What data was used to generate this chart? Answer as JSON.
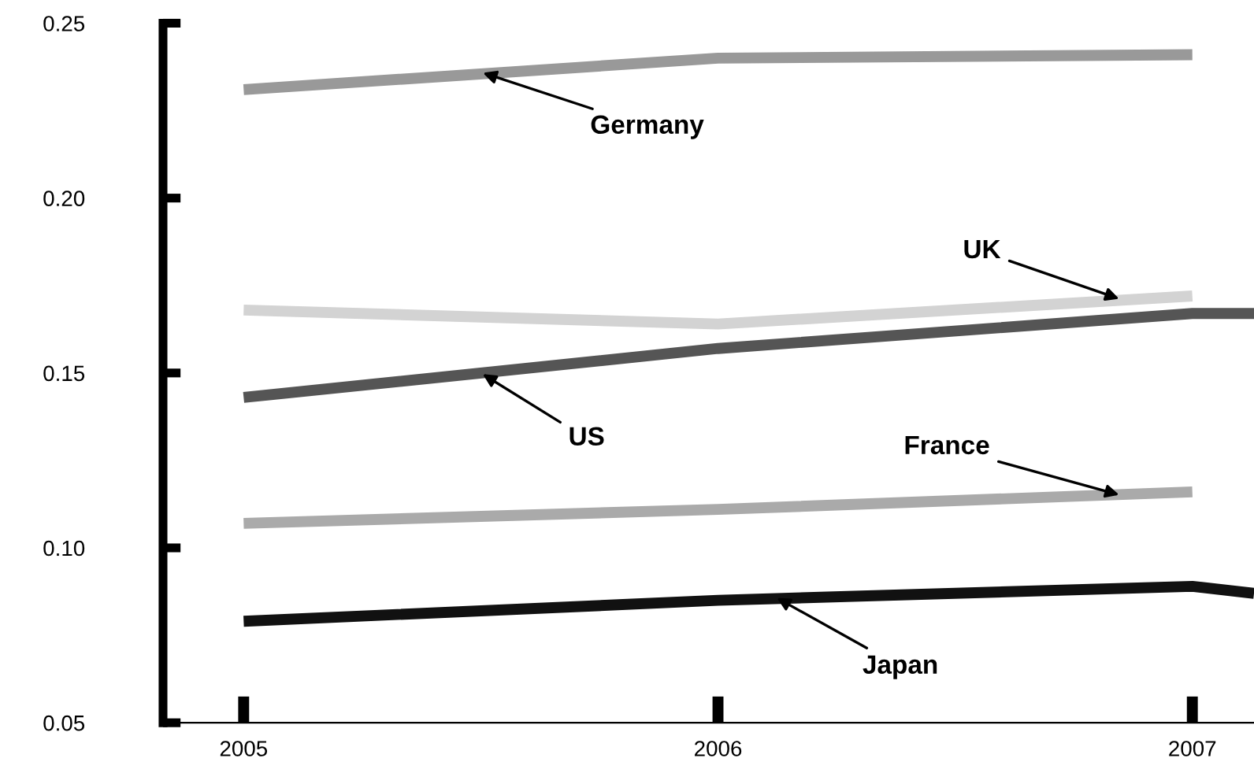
{
  "chart_data": {
    "type": "line",
    "series": [
      {
        "color": "#999999",
        "values": [
          0.231,
          0.24,
          0.241
        ],
        "x": [
          2005,
          2006,
          2007
        ]
      },
      {
        "color": "#d3d3d3",
        "values": [
          0.168,
          0.164,
          0.172
        ],
        "x": [
          2005,
          2006,
          2007
        ]
      },
      {
        "color": "#555555",
        "values": [
          0.143,
          0.157,
          0.167,
          0.167
        ],
        "x": [
          2005,
          2006,
          2007,
          2007.13
        ]
      },
      {
        "color": "#aaaaaa",
        "values": [
          0.107,
          0.111,
          0.116
        ],
        "x": [
          2005,
          2006,
          2007
        ]
      },
      {
        "color": "#111111",
        "values": [
          0.079,
          0.085,
          0.089,
          0.087
        ],
        "x": [
          2005,
          2006,
          2007,
          2007.13
        ]
      }
    ],
    "annotations": [
      {
        "text": "Germany",
        "x": 2005.5,
        "y": 0.236
      },
      {
        "text": "UK",
        "x": 2006.85,
        "y": 0.171
      },
      {
        "text": "US",
        "x": 2005.5,
        "y": 0.15
      },
      {
        "text": "France",
        "x": 2006.85,
        "y": 0.115
      },
      {
        "text": "Japan",
        "x": 2006.12,
        "y": 0.086
      }
    ],
    "xlim": [
      2004.83,
      2007.13
    ],
    "ylim": [
      0.05,
      0.25
    ],
    "xticks": [
      2005,
      2006,
      2007
    ],
    "yticks": [
      {
        "value": 0.05,
        "label": "0.05"
      },
      {
        "value": 0.1,
        "label": "0.10"
      },
      {
        "value": 0.15,
        "label": "0.15"
      },
      {
        "value": 0.2,
        "label": "0.20"
      },
      {
        "value": 0.25,
        "label": "0.25"
      }
    ],
    "grid": false,
    "legend": false,
    "marker": "none",
    "line_style": "solid"
  }
}
